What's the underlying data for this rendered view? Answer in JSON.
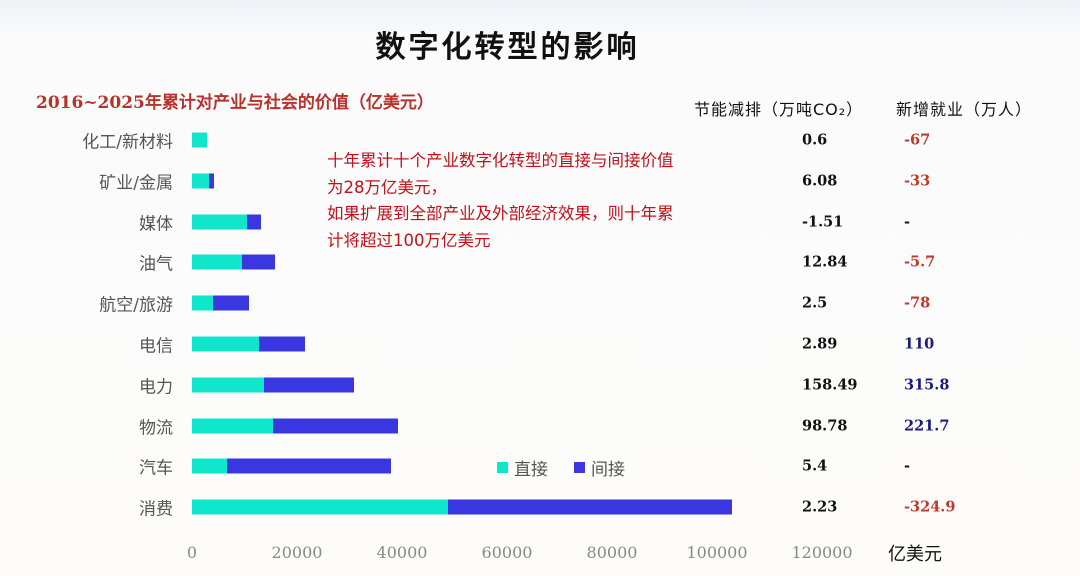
{
  "title": "数字化转型的影响",
  "subtitle": "2016~2025年累计对产业与社会的价值（亿美元）",
  "columns": {
    "co2": "节能减排（万吨CO₂）",
    "jobs": "新增就业（万人）"
  },
  "note": {
    "lines": [
      "十年累计十个产业数字化转型的直接与间接价值",
      "为28万亿美元，",
      "如果扩展到全部产业及外部经济效果，则十年累",
      "计将超过100万亿美元"
    ]
  },
  "legend": {
    "direct": "直接",
    "indirect": "间接"
  },
  "axis": {
    "unit": "亿美元",
    "ticks": [
      "0",
      "20000",
      "40000",
      "60000",
      "80000",
      "100000",
      "120000"
    ]
  },
  "colors": {
    "direct": "#10e6cc",
    "indirect": "#3a36e0",
    "negative": "#c0392b",
    "positive": "#1a1a7a",
    "neutral": "#111111"
  },
  "rows": [
    {
      "label": "化工/新材料",
      "direct": 2900,
      "indirect": 0,
      "co2": "0.6",
      "jobs": "-67",
      "jobs_sign": "neg"
    },
    {
      "label": "矿业/金属",
      "direct": 3200,
      "indirect": 1000,
      "co2": "6.08",
      "jobs": "-33",
      "jobs_sign": "neg"
    },
    {
      "label": "媒体",
      "direct": 10500,
      "indirect": 2700,
      "co2": "-1.51",
      "jobs": "-",
      "jobs_sign": "none"
    },
    {
      "label": "油气",
      "direct": 9500,
      "indirect": 6300,
      "co2": "12.84",
      "jobs": "-5.7",
      "jobs_sign": "neg"
    },
    {
      "label": "航空/旅游",
      "direct": 4000,
      "indirect": 6900,
      "co2": "2.5",
      "jobs": "-78",
      "jobs_sign": "neg"
    },
    {
      "label": "电信",
      "direct": 12700,
      "indirect": 8700,
      "co2": "2.89",
      "jobs": "110",
      "jobs_sign": "pos"
    },
    {
      "label": "电力",
      "direct": 13700,
      "indirect": 17100,
      "co2": "158.49",
      "jobs": "315.8",
      "jobs_sign": "pos"
    },
    {
      "label": "物流",
      "direct": 15400,
      "indirect": 23800,
      "co2": "98.78",
      "jobs": "221.7",
      "jobs_sign": "pos"
    },
    {
      "label": "汽车",
      "direct": 6700,
      "indirect": 31200,
      "co2": "5.4",
      "jobs": "-",
      "jobs_sign": "none"
    },
    {
      "label": "消费",
      "direct": 48800,
      "indirect": 54100,
      "co2": "2.23",
      "jobs": "-324.9",
      "jobs_sign": "neg"
    }
  ],
  "chart_data": {
    "type": "bar",
    "orientation": "horizontal",
    "stacked": true,
    "title": "数字化转型的影响",
    "subtitle": "2016~2025年累计对产业与社会的价值（亿美元）",
    "xlabel": "亿美元",
    "ylabel": "",
    "xlim": [
      0,
      120000
    ],
    "xticks": [
      0,
      20000,
      40000,
      60000,
      80000,
      100000,
      120000
    ],
    "grid": false,
    "legend_position": "inside-lower-right",
    "categories": [
      "化工/新材料",
      "矿业/金属",
      "媒体",
      "油气",
      "航空/旅游",
      "电信",
      "电力",
      "物流",
      "汽车",
      "消费"
    ],
    "series": [
      {
        "name": "直接",
        "color": "#10e6cc",
        "values": [
          2900,
          3200,
          10500,
          9500,
          4000,
          12700,
          13700,
          15400,
          6700,
          48800
        ]
      },
      {
        "name": "间接",
        "color": "#3a36e0",
        "values": [
          0,
          1000,
          2700,
          6300,
          6900,
          8700,
          17100,
          23800,
          31200,
          54100
        ]
      }
    ],
    "side_table": {
      "columns": [
        "节能减排（万吨CO₂）",
        "新增就业（万人）"
      ],
      "values": [
        [
          "0.6",
          "-67"
        ],
        [
          "6.08",
          "-33"
        ],
        [
          "-1.51",
          "-"
        ],
        [
          "12.84",
          "-5.7"
        ],
        [
          "2.5",
          "-78"
        ],
        [
          "2.89",
          "110"
        ],
        [
          "158.49",
          "315.8"
        ],
        [
          "98.78",
          "221.7"
        ],
        [
          "5.4",
          "-"
        ],
        [
          "2.23",
          "-324.9"
        ]
      ]
    },
    "annotations": [
      "十年累计十个产业数字化转型的直接与间接价值为28万亿美元，",
      "如果扩展到全部产业及外部经济效果，则十年累计将超过100万亿美元"
    ]
  }
}
